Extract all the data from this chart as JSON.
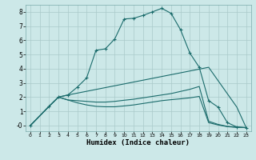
{
  "xlabel": "Humidex (Indice chaleur)",
  "xlim": [
    -0.5,
    23.5
  ],
  "ylim": [
    -0.4,
    8.5
  ],
  "xticks": [
    0,
    1,
    2,
    3,
    4,
    5,
    6,
    7,
    8,
    9,
    10,
    11,
    12,
    13,
    14,
    15,
    16,
    17,
    18,
    19,
    20,
    21,
    22,
    23
  ],
  "yticks": [
    0,
    1,
    2,
    3,
    4,
    5,
    6,
    7,
    8
  ],
  "ytick_labels": [
    "-0",
    "1",
    "2",
    "3",
    "4",
    "5",
    "6",
    "7",
    "8"
  ],
  "background_color": "#cce8e8",
  "line_color": "#1a6b6b",
  "grid_color": "#aacaca",
  "curves": [
    {
      "x": [
        0,
        2,
        3,
        4,
        5,
        6,
        7,
        8,
        9,
        10,
        11,
        12,
        13,
        14,
        15,
        16,
        17,
        18,
        19,
        20,
        21,
        22,
        23
      ],
      "y": [
        0,
        1.35,
        2.0,
        2.15,
        2.7,
        3.35,
        5.3,
        5.4,
        6.1,
        7.5,
        7.55,
        7.75,
        8.0,
        8.25,
        7.9,
        6.75,
        5.1,
        4.1,
        1.75,
        1.3,
        0.2,
        -0.1,
        -0.15
      ],
      "marker": true
    },
    {
      "x": [
        0,
        2,
        3,
        4,
        19,
        22,
        23
      ],
      "y": [
        0,
        1.35,
        2.0,
        2.15,
        4.1,
        1.3,
        -0.15
      ],
      "marker": false
    },
    {
      "x": [
        0,
        2,
        3,
        4,
        5,
        6,
        7,
        8,
        9,
        10,
        11,
        12,
        13,
        14,
        15,
        16,
        17,
        18,
        19,
        20,
        21,
        22,
        23
      ],
      "y": [
        0,
        1.35,
        2.0,
        1.8,
        1.75,
        1.7,
        1.65,
        1.65,
        1.7,
        1.78,
        1.85,
        1.95,
        2.05,
        2.15,
        2.25,
        2.4,
        2.55,
        2.75,
        0.3,
        0.08,
        -0.06,
        -0.12,
        -0.15
      ],
      "marker": false
    },
    {
      "x": [
        0,
        2,
        3,
        4,
        5,
        6,
        7,
        8,
        9,
        10,
        11,
        12,
        13,
        14,
        15,
        16,
        17,
        18,
        19,
        20,
        21,
        22,
        23
      ],
      "y": [
        0,
        1.35,
        2.0,
        1.8,
        1.6,
        1.45,
        1.35,
        1.32,
        1.32,
        1.38,
        1.45,
        1.55,
        1.65,
        1.75,
        1.82,
        1.88,
        1.95,
        2.05,
        0.2,
        0.04,
        -0.08,
        -0.13,
        -0.15
      ],
      "marker": false
    }
  ]
}
